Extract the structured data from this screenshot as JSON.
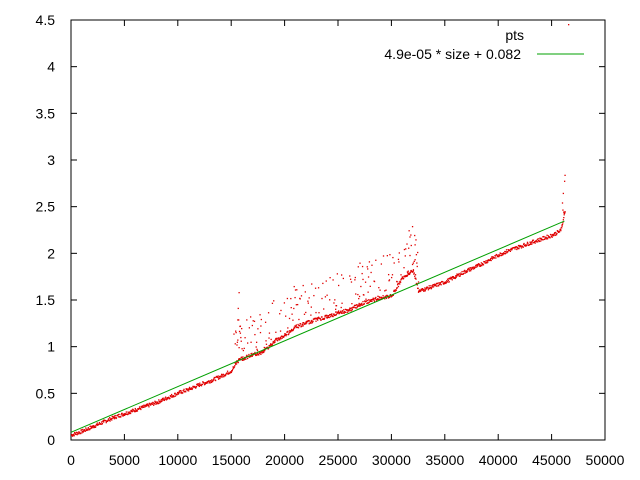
{
  "chart_data": {
    "type": "scatter",
    "title": "",
    "xlabel": "",
    "ylabel": "",
    "xlim": [
      0,
      50000
    ],
    "ylim": [
      0,
      4.5
    ],
    "x_ticks": [
      "0",
      "5000",
      "10000",
      "15000",
      "20000",
      "25000",
      "30000",
      "35000",
      "40000",
      "45000",
      "50000"
    ],
    "y_ticks": [
      "0",
      "0.5",
      "1",
      "1.5",
      "2",
      "2.5",
      "3",
      "3.5",
      "4",
      "4.5"
    ],
    "grid": false,
    "legend_position": "top-right",
    "series": [
      {
        "name": "pts",
        "kind": "points",
        "color": "#e00000",
        "x": [
          0,
          1000,
          2000,
          3000,
          4000,
          5000,
          6000,
          7000,
          8000,
          9000,
          10000,
          11000,
          12000,
          13000,
          14000,
          15000,
          15500,
          16000,
          17000,
          18000,
          19000,
          20000,
          21000,
          22000,
          23000,
          24000,
          25000,
          26000,
          27000,
          28000,
          29000,
          30000,
          31000,
          32000,
          32500,
          33000,
          34000,
          35000,
          36000,
          37000,
          38000,
          39000,
          40000,
          41000,
          42000,
          43000,
          44000,
          45000,
          45800,
          46200
        ],
        "y": [
          0.06,
          0.1,
          0.15,
          0.2,
          0.25,
          0.29,
          0.33,
          0.37,
          0.41,
          0.46,
          0.51,
          0.55,
          0.6,
          0.64,
          0.69,
          0.75,
          0.85,
          0.88,
          0.92,
          0.95,
          1.07,
          1.13,
          1.22,
          1.26,
          1.3,
          1.33,
          1.37,
          1.4,
          1.46,
          1.5,
          1.53,
          1.55,
          1.75,
          1.82,
          1.6,
          1.62,
          1.66,
          1.7,
          1.76,
          1.82,
          1.87,
          1.93,
          1.99,
          2.04,
          2.08,
          2.12,
          2.16,
          2.2,
          2.25,
          2.45
        ]
      },
      {
        "name": "4.9e-05 * size + 0.082",
        "kind": "line",
        "color": "#00a000",
        "x": [
          0,
          46200
        ],
        "y": [
          0.082,
          2.346
        ]
      }
    ]
  }
}
